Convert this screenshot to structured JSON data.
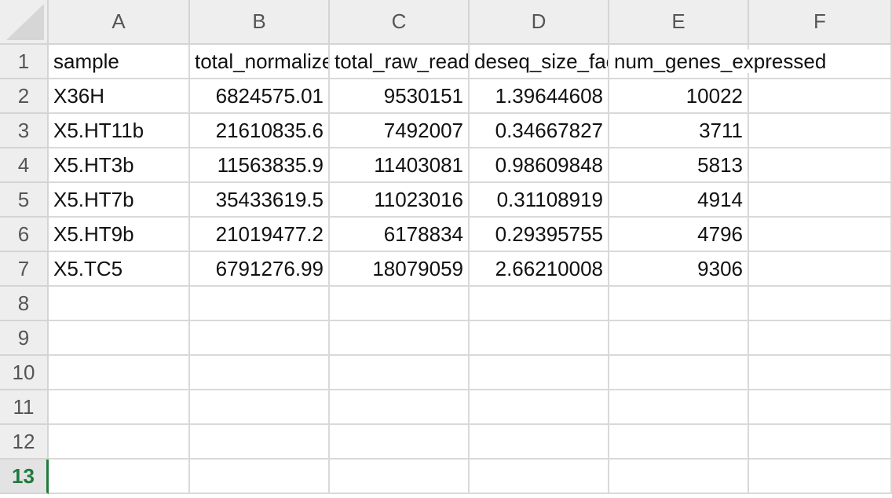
{
  "spreadsheet": {
    "column_headers": [
      "A",
      "B",
      "C",
      "D",
      "E",
      "F"
    ],
    "row_numbers": [
      "1",
      "2",
      "3",
      "4",
      "5",
      "6",
      "7",
      "8",
      "9",
      "10",
      "11",
      "12",
      "13"
    ],
    "active_row": "13",
    "rows": [
      [
        "sample",
        "total_normalized_reads",
        "total_raw_reads",
        "deseq_size_factor",
        "num_genes_expressed",
        ""
      ],
      [
        "X36H",
        "6824575.01",
        "9530151",
        "1.39644608",
        "10022",
        ""
      ],
      [
        "X5.HT11b",
        "21610835.6",
        "7492007",
        "0.34667827",
        "3711",
        ""
      ],
      [
        "X5.HT3b",
        "11563835.9",
        "11403081",
        "0.98609848",
        "5813",
        ""
      ],
      [
        "X5.HT7b",
        "35433619.5",
        "11023016",
        "0.31108919",
        "4914",
        ""
      ],
      [
        "X5.HT9b",
        "21019477.2",
        "6178834",
        "0.29395755",
        "4796",
        ""
      ],
      [
        "X5.TC5",
        "6791276.99",
        "18079059",
        "2.66210008",
        "9306",
        ""
      ],
      [
        "",
        "",
        "",
        "",
        "",
        ""
      ],
      [
        "",
        "",
        "",
        "",
        "",
        ""
      ],
      [
        "",
        "",
        "",
        "",
        "",
        ""
      ],
      [
        "",
        "",
        "",
        "",
        "",
        ""
      ],
      [
        "",
        "",
        "",
        "",
        "",
        ""
      ],
      [
        "",
        "",
        "",
        "",
        "",
        ""
      ]
    ]
  },
  "colors": {
    "header_bg": "#eeeeee",
    "grid_line": "#d9d9d9",
    "active_accent": "#1f7a3d"
  }
}
